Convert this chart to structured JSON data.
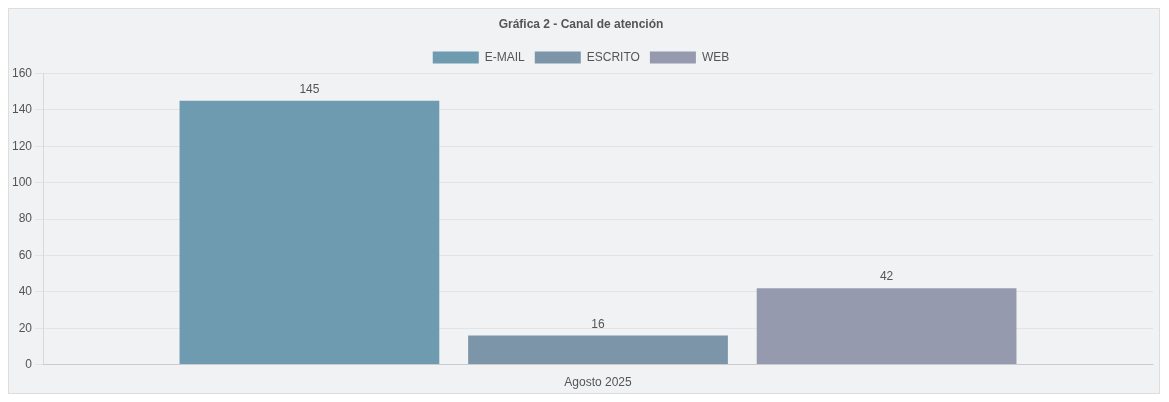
{
  "chart_data": {
    "type": "bar",
    "title": "Gráfica 2 - Canal de atención",
    "categories": [
      "Agosto 2025"
    ],
    "series": [
      {
        "name": "E-MAIL",
        "color": "#6f9bb0",
        "values": [
          145
        ]
      },
      {
        "name": "ESCRITO",
        "color": "#7c95a8",
        "values": [
          16
        ]
      },
      {
        "name": "WEB",
        "color": "#959aaf",
        "values": [
          42
        ]
      }
    ],
    "ylim": [
      0,
      160
    ],
    "yticks": [
      0,
      20,
      40,
      60,
      80,
      100,
      120,
      140,
      160
    ],
    "grid": "y",
    "legend": "top",
    "data_labels": true
  }
}
